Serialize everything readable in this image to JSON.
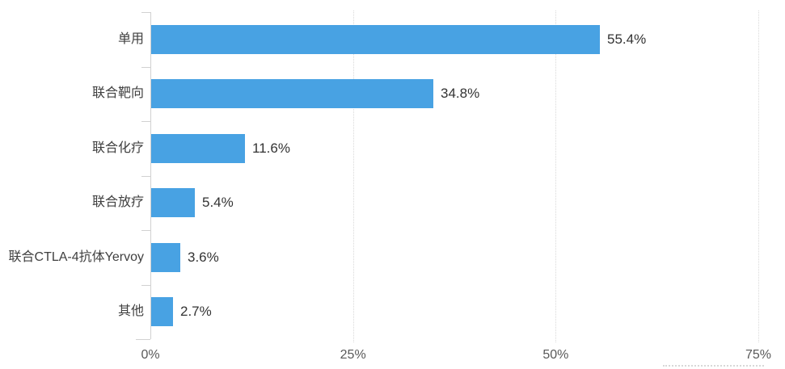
{
  "chart_data": {
    "type": "bar",
    "orientation": "horizontal",
    "title": "",
    "subtitle": "",
    "xlabel": "",
    "ylabel": "",
    "categories": [
      "单用",
      "联合靶向",
      "联合化疗",
      "联合放疗",
      "联合CTLA-4抗体Yervoy",
      "其他"
    ],
    "values": [
      55.4,
      34.8,
      11.6,
      5.4,
      3.6,
      2.7
    ],
    "data_labels": [
      "55.4%",
      "34.8%",
      "11.6%",
      "5.4%",
      "3.6%",
      "2.7%"
    ],
    "x_tick_labels": [
      "0%",
      "25%",
      "50%",
      "75%"
    ],
    "x_tick_values": [
      0,
      25,
      50,
      75
    ],
    "xlim": [
      0,
      77
    ],
    "grid": "vertical-dotted",
    "legend": "none",
    "colors": {
      "bar": "#48a2e3",
      "axis": "#d1d1d1",
      "gridline": "#d9d9d9",
      "category_text": "#404040",
      "value_text": "#333333",
      "tick_text": "#595959",
      "background": "#ffffff"
    }
  }
}
